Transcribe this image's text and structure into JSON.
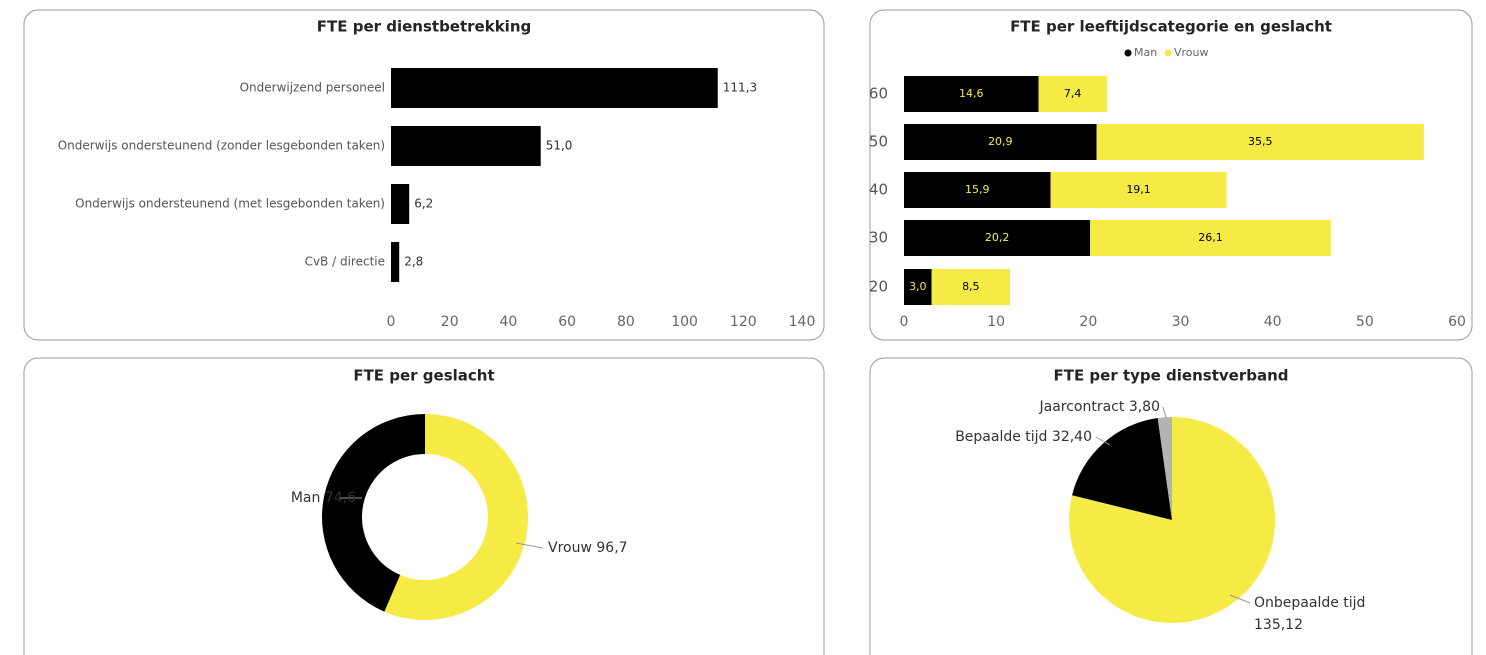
{
  "chart_data": [
    {
      "type": "bar",
      "orientation": "horizontal",
      "title": "FTE per dienstbetrekking",
      "categories": [
        "Onderwijzend personeel",
        "Onderwijs ondersteunend (zonder lesgebonden taken)",
        "Onderwijs ondersteunend (met lesgebonden taken)",
        "CvB / directie"
      ],
      "values": [
        111.3,
        51.0,
        6.2,
        2.8
      ],
      "value_labels": [
        "111,3",
        "51,0",
        "6,2",
        "2,8"
      ],
      "color": "#000000",
      "xlim": [
        0,
        140
      ],
      "xticks": [
        0,
        20,
        40,
        60,
        80,
        100,
        120,
        140
      ]
    },
    {
      "type": "bar",
      "orientation": "horizontal",
      "stacked": true,
      "title": "FTE per leeftijdscategorie en geslacht",
      "categories": [
        "60",
        "50",
        "40",
        "30",
        "20"
      ],
      "series": [
        {
          "name": "Man",
          "color": "#000000",
          "values": [
            14.6,
            20.9,
            15.9,
            20.2,
            3.0
          ],
          "value_labels": [
            "14,6",
            "20,9",
            "15,9",
            "20,2",
            "3,0"
          ]
        },
        {
          "name": "Vrouw",
          "color": "#f6ea45",
          "values": [
            7.4,
            35.5,
            19.1,
            26.1,
            8.5
          ],
          "value_labels": [
            "7,4",
            "35,5",
            "19,1",
            "26,1",
            "8,5"
          ]
        }
      ],
      "legend": "top",
      "xlim": [
        0,
        60
      ],
      "xticks": [
        0,
        10,
        20,
        30,
        40,
        50,
        60
      ]
    },
    {
      "type": "donut",
      "title": "FTE per geslacht",
      "categories": [
        "Vrouw",
        "Man"
      ],
      "values": [
        96.7,
        74.6
      ],
      "value_labels": [
        "96,7",
        "74,6"
      ],
      "colors": [
        "#f6ea45",
        "#000000"
      ]
    },
    {
      "type": "pie",
      "title": "FTE per type dienstverband",
      "categories": [
        "Onbepaalde tijd",
        "Bepaalde tijd",
        "Jaarcontract"
      ],
      "values": [
        135.12,
        32.4,
        3.8
      ],
      "value_labels": [
        "135,12",
        "32,40",
        "3,80"
      ],
      "colors": [
        "#f6ea45",
        "#000000",
        "#b3b3b3"
      ]
    }
  ]
}
